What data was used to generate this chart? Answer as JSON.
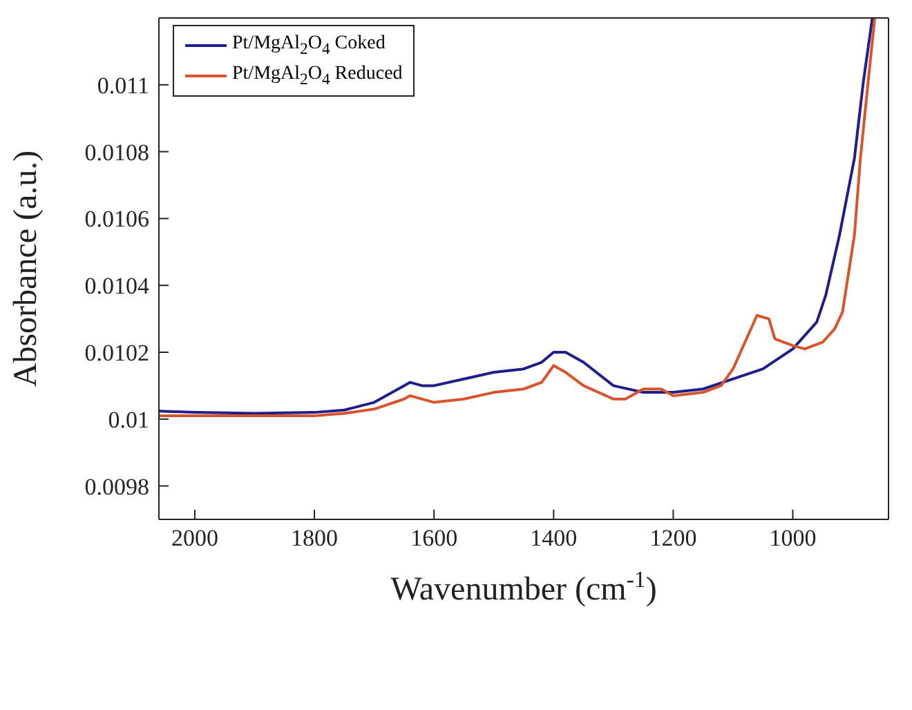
{
  "chart_data": {
    "type": "line",
    "xlabel": "Wavenumber (cm$^{-1}$)",
    "ylabel": "Absorbance (a.u.)",
    "xlim": [
      2060,
      840
    ],
    "xticks": [
      2000,
      1800,
      1600,
      1400,
      1200,
      1000
    ],
    "ylim": [
      0.0097,
      0.0112
    ],
    "yticks": [
      0.0098,
      0.01,
      0.0102,
      0.0104,
      0.0106,
      0.0108,
      0.011
    ],
    "grid": false,
    "legend": "top left",
    "marker": "none",
    "line_style": "solid",
    "series": [
      {
        "name": "Pt/MgAl$_{2}$O$_{4}$ Coked",
        "color": "#1f1f8c",
        "x": [
          2060,
          2000,
          1900,
          1800,
          1750,
          1700,
          1650,
          1640,
          1620,
          1600,
          1550,
          1500,
          1450,
          1420,
          1400,
          1380,
          1350,
          1300,
          1250,
          1200,
          1150,
          1100,
          1050,
          1000,
          960,
          945,
          922,
          897,
          882,
          867
        ],
        "values": [
          0.010024,
          0.01002,
          0.010017,
          0.01002,
          0.010027,
          0.01005,
          0.0101,
          0.01011,
          0.0101,
          0.0101,
          0.01012,
          0.01014,
          0.01015,
          0.01017,
          0.0102,
          0.0102,
          0.01017,
          0.0101,
          0.01008,
          0.01008,
          0.01009,
          0.01012,
          0.01015,
          0.01021,
          0.01029,
          0.01037,
          0.01055,
          0.01078,
          0.01101,
          0.0112
        ]
      },
      {
        "name": "Pt/MgAl$_{2}$O$_{4}$ Reduced",
        "color": "#d9542b",
        "x": [
          2060,
          2000,
          1900,
          1800,
          1750,
          1700,
          1650,
          1640,
          1600,
          1550,
          1500,
          1450,
          1420,
          1400,
          1380,
          1350,
          1300,
          1280,
          1250,
          1220,
          1200,
          1150,
          1120,
          1100,
          1080,
          1060,
          1040,
          1030,
          1000,
          980,
          950,
          930,
          917,
          897,
          887,
          874,
          863
        ],
        "values": [
          0.01001,
          0.01001,
          0.01001,
          0.01001,
          0.010017,
          0.01003,
          0.01006,
          0.01007,
          0.01005,
          0.01006,
          0.01008,
          0.01009,
          0.01011,
          0.01016,
          0.01014,
          0.0101,
          0.01006,
          0.01006,
          0.01009,
          0.01009,
          0.01007,
          0.01008,
          0.0101,
          0.01015,
          0.01023,
          0.01031,
          0.0103,
          0.01024,
          0.01022,
          0.01021,
          0.01023,
          0.01027,
          0.01032,
          0.01055,
          0.01078,
          0.01101,
          0.0112
        ]
      }
    ]
  }
}
